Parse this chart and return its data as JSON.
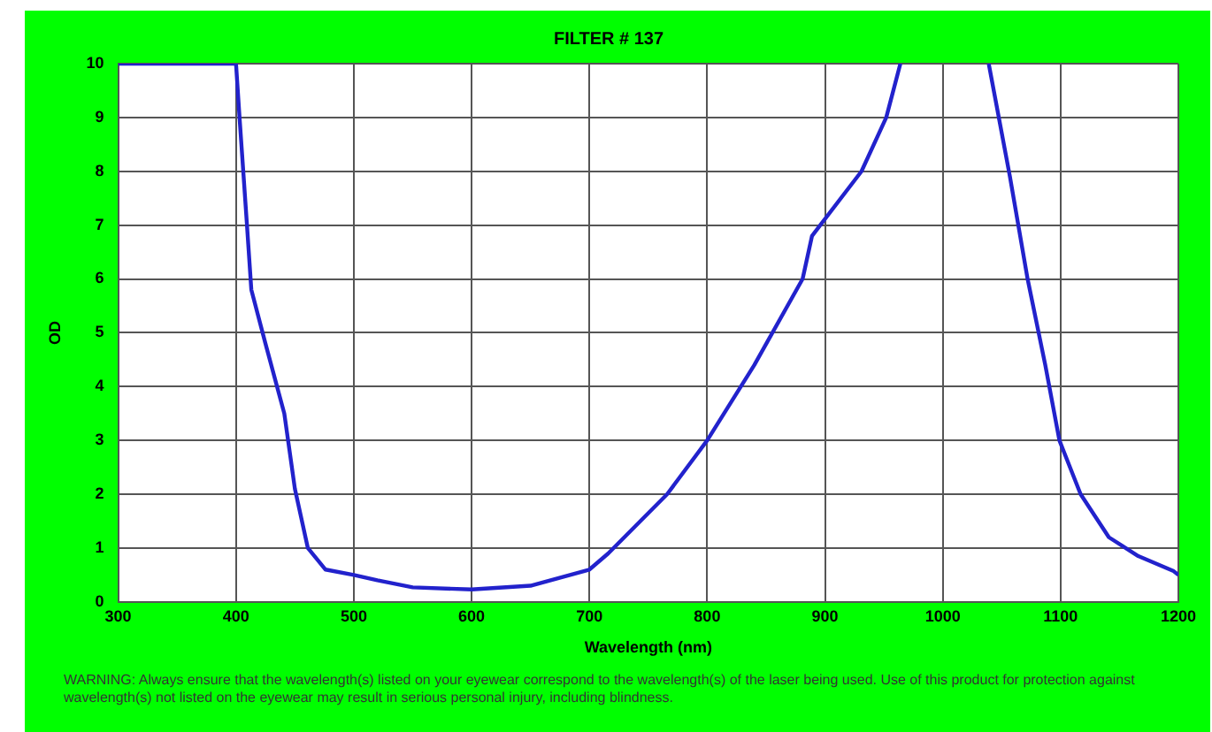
{
  "chart_data": {
    "type": "line",
    "title": "FILTER # 137",
    "xlabel": "Wavelength (nm)",
    "ylabel": "OD",
    "x": [
      300,
      350,
      400,
      403,
      409,
      413,
      425,
      441,
      450,
      461,
      476,
      500,
      520,
      550,
      600,
      650,
      700,
      716,
      766,
      800,
      840,
      881,
      889,
      931,
      952,
      964,
      1000,
      1039,
      1057,
      1072,
      1087,
      1099,
      1117,
      1141,
      1166,
      1196,
      1200
    ],
    "series": [
      {
        "color": "#2222cc",
        "values": [
          10,
          10,
          10,
          9,
          7.1,
          5.8,
          4.8,
          3.5,
          2.1,
          1.0,
          0.6,
          0.5,
          0.4,
          0.27,
          0.23,
          0.3,
          0.6,
          0.9,
          2.0,
          3.0,
          4.4,
          6.0,
          6.8,
          8.0,
          9.0,
          10,
          null,
          10,
          7.9,
          6.0,
          4.4,
          3.0,
          2.0,
          1.2,
          0.85,
          0.57,
          0.5
        ]
      }
    ],
    "xlim": [
      300,
      1200
    ],
    "xticks": [
      300,
      400,
      500,
      600,
      700,
      800,
      900,
      1000,
      1100,
      1200
    ],
    "ylim": [
      0,
      10
    ],
    "yticks": [
      0,
      1,
      2,
      3,
      4,
      5,
      6,
      7,
      8,
      9,
      10
    ],
    "grid": true,
    "legend": false,
    "marker": "none",
    "line_style": "solid",
    "annotations": [
      "WARNING:  Always ensure that the wavelength(s) listed on your eyewear correspond to the wavelength(s) of the laser being used. Use of this product for protection against wavelength(s) not listed on the eyewear may result in serious personal injury, including blindness."
    ]
  }
}
